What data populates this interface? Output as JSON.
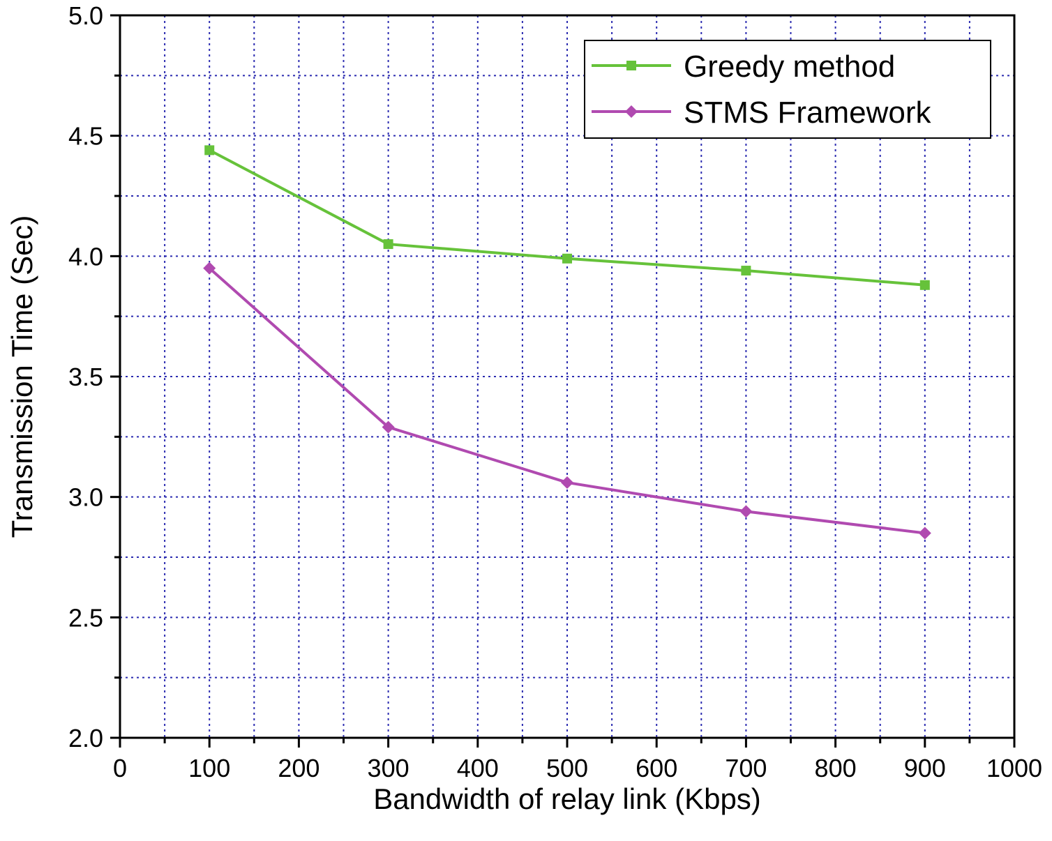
{
  "chart_data": {
    "type": "line",
    "title": "",
    "xlabel": "Bandwidth of relay link (Kbps)",
    "ylabel": "Transmission Time (Sec)",
    "xlim": [
      0,
      1000
    ],
    "ylim": [
      2.0,
      5.0
    ],
    "x_ticks": [
      0,
      100,
      200,
      300,
      400,
      500,
      600,
      700,
      800,
      900,
      1000
    ],
    "x_tick_labels": [
      "0",
      "100",
      "200",
      "300",
      "400",
      "500",
      "600",
      "700",
      "800",
      "900",
      "1000"
    ],
    "y_ticks": [
      2.0,
      2.5,
      3.0,
      3.5,
      4.0,
      4.5,
      5.0
    ],
    "y_tick_labels": [
      "2.0",
      "2.5",
      "3.0",
      "3.5",
      "4.0",
      "4.5",
      "5.0"
    ],
    "grid": true,
    "legend_position": "top-right",
    "x": [
      100,
      300,
      500,
      700,
      900
    ],
    "series": [
      {
        "name": "Greedy method",
        "color": "#66c23a",
        "marker": "square",
        "values": [
          4.44,
          4.05,
          3.99,
          3.94,
          3.88
        ]
      },
      {
        "name": "STMS Framework",
        "color": "#b04ab0",
        "marker": "diamond",
        "values": [
          3.95,
          3.29,
          3.06,
          2.94,
          2.85
        ]
      }
    ]
  }
}
